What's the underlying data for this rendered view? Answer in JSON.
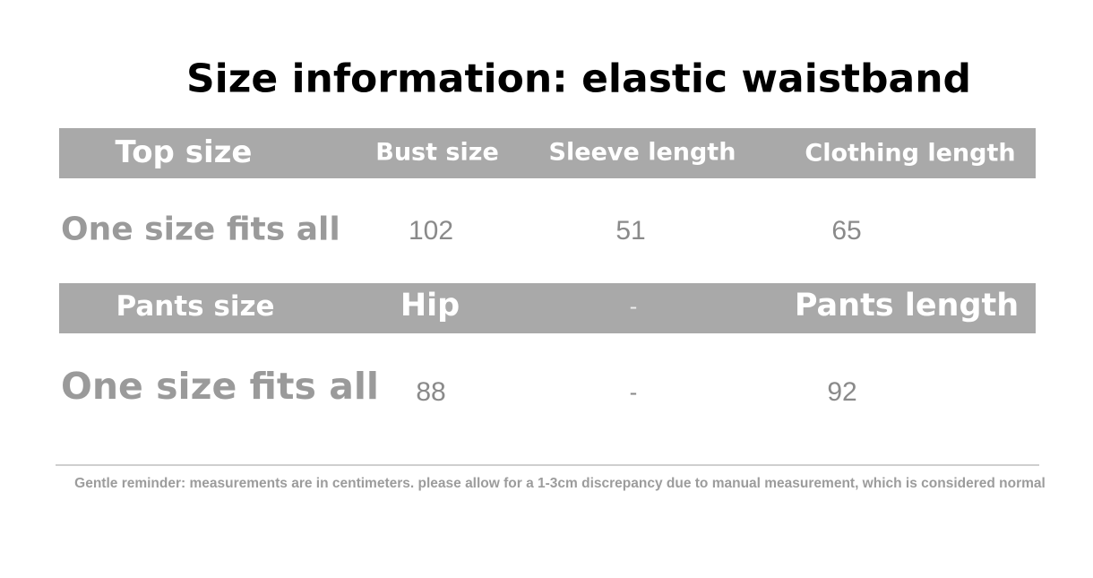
{
  "title": "Size information: elastic waistband",
  "top_table": {
    "headers": [
      "Top size",
      "Bust size",
      "Sleeve length",
      "Clothing length"
    ],
    "row": [
      "One size fits all",
      "102",
      "51",
      "65"
    ]
  },
  "pants_table": {
    "headers": [
      "Pants size",
      "Hip",
      "-",
      "Pants length"
    ],
    "row": [
      "One size fits all",
      "88",
      "-",
      "92"
    ]
  },
  "note": "Gentle reminder: measurements are in centimeters. please allow for a 1-3cm discrepancy due to manual measurement, which is considered normal",
  "colors": {
    "header_bg": "#a9a9a9",
    "header_text": "#ffffff",
    "label_text": "#9a9a9a",
    "value_text": "#8a8a8a"
  }
}
